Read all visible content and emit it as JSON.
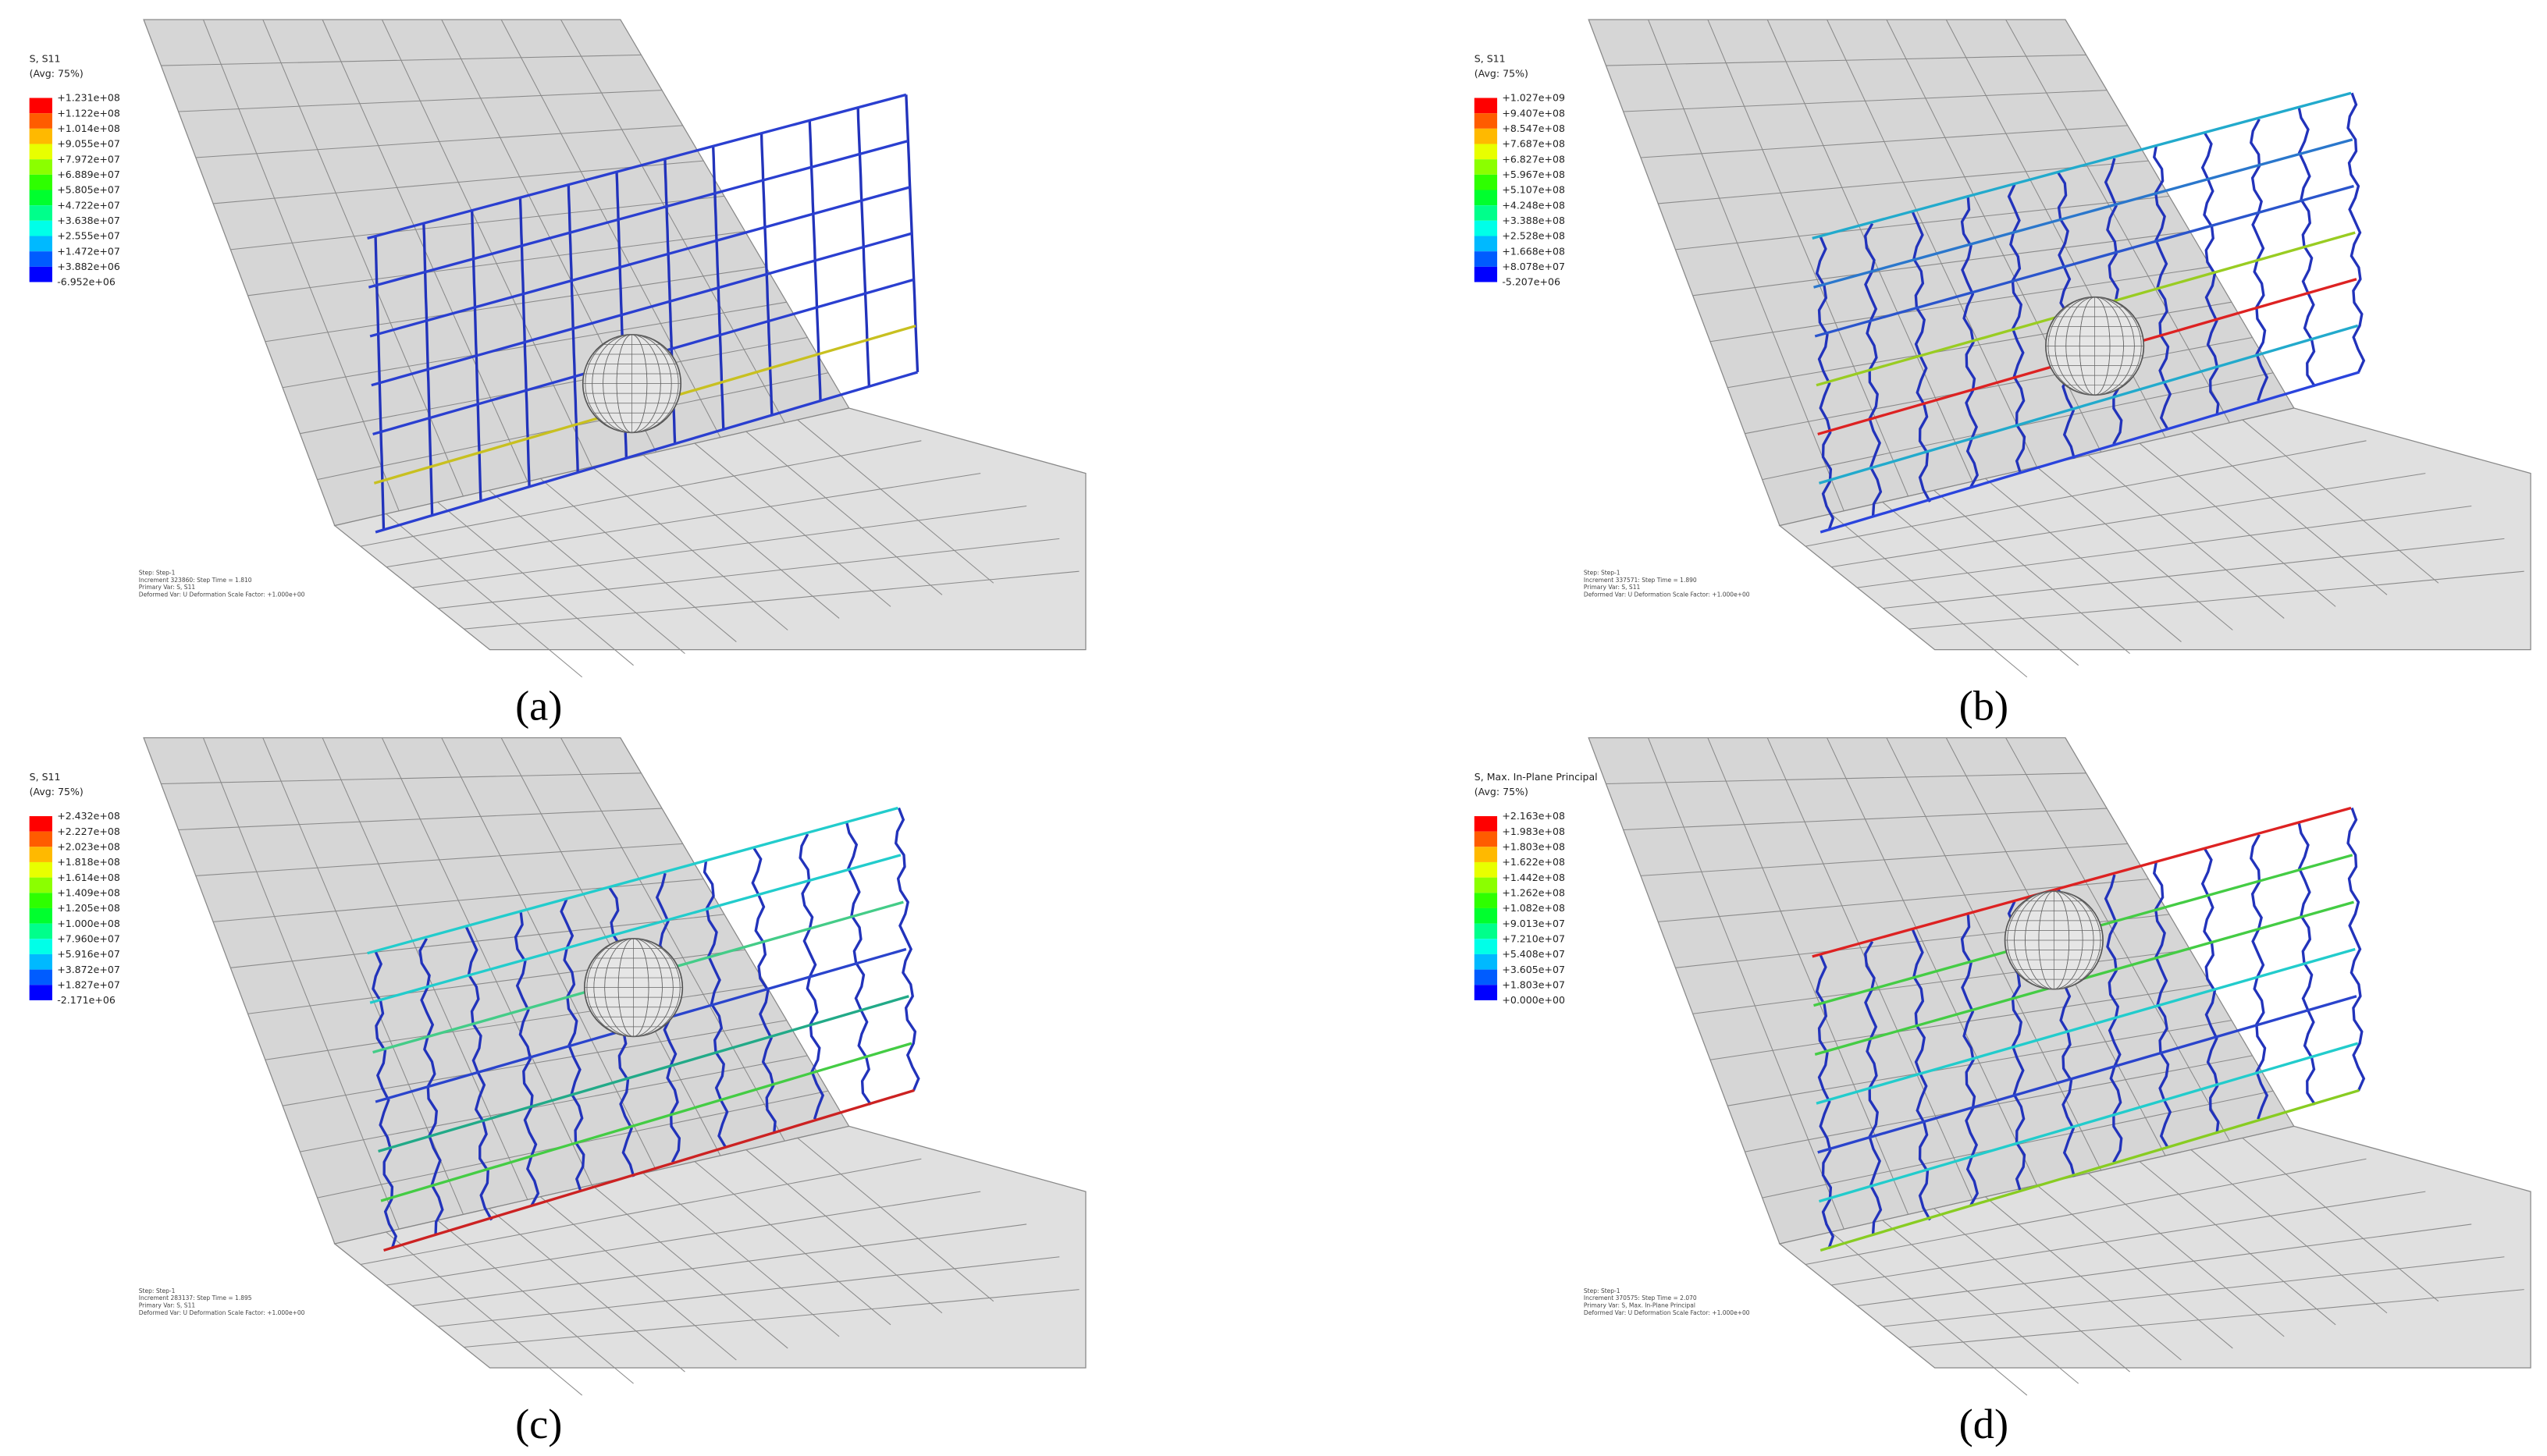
{
  "colormap": [
    "#ff0000",
    "#ff5c00",
    "#ffb900",
    "#e8ff00",
    "#8bff00",
    "#2eff00",
    "#00ff2e",
    "#00ff8b",
    "#00ffe8",
    "#00b9ff",
    "#005cff",
    "#0000ff"
  ],
  "panels": [
    {
      "legend": {
        "title": "S, S11",
        "average": "(Avg: 75%)",
        "labels": [
          "+1.231e+08",
          "+1.122e+08",
          "+1.014e+08",
          "+9.055e+07",
          "+7.972e+07",
          "+6.889e+07",
          "+5.805e+07",
          "+4.722e+07",
          "+3.638e+07",
          "+2.555e+07",
          "+1.472e+07",
          "+3.882e+06",
          "-6.952e+06"
        ]
      },
      "info": [
        "Step: Step-1",
        "Increment 323860: Step Time = 1.810",
        "Primary Var: S, S11",
        "Deformed Var: U   Deformation Scale Factor: +1.000e+00"
      ],
      "caption": "(a)"
    },
    {
      "legend": {
        "title": "S, S11",
        "average": "(Avg: 75%)",
        "labels": [
          "+1.027e+09",
          "+9.407e+08",
          "+8.547e+08",
          "+7.687e+08",
          "+6.827e+08",
          "+5.967e+08",
          "+5.107e+08",
          "+4.248e+08",
          "+3.388e+08",
          "+2.528e+08",
          "+1.668e+08",
          "+8.078e+07",
          "-5.207e+06"
        ]
      },
      "info": [
        "Step: Step-1",
        "Increment 337571: Step Time = 1.890",
        "Primary Var: S, S11",
        "Deformed Var: U   Deformation Scale Factor: +1.000e+00"
      ],
      "caption": "(b)"
    },
    {
      "legend": {
        "title": "S, S11",
        "average": "(Avg: 75%)",
        "labels": [
          "+2.432e+08",
          "+2.227e+08",
          "+2.023e+08",
          "+1.818e+08",
          "+1.614e+08",
          "+1.409e+08",
          "+1.205e+08",
          "+1.000e+08",
          "+7.960e+07",
          "+5.916e+07",
          "+3.872e+07",
          "+1.827e+07",
          "-2.171e+06"
        ]
      },
      "info": [
        "Step: Step-1",
        "Increment 283137: Step Time = 1.895",
        "Primary Var: S, S11",
        "Deformed Var: U   Deformation Scale Factor: +1.000e+00"
      ],
      "caption": "(c)"
    },
    {
      "legend": {
        "title": "S, Max. In-Plane Principal",
        "average": "(Avg: 75%)",
        "labels": [
          "+2.163e+08",
          "+1.983e+08",
          "+1.803e+08",
          "+1.622e+08",
          "+1.442e+08",
          "+1.262e+08",
          "+1.082e+08",
          "+9.013e+07",
          "+7.210e+07",
          "+5.408e+07",
          "+3.605e+07",
          "+1.803e+07",
          "+0.000e+00"
        ]
      },
      "info": [
        "Step: Step-1",
        "Increment 370575: Step Time = 2.070",
        "Primary Var: S, Max. In-Plane Principal",
        "Deformed Var: U   Deformation Scale Factor: +1.000e+00"
      ],
      "caption": "(d)"
    }
  ]
}
